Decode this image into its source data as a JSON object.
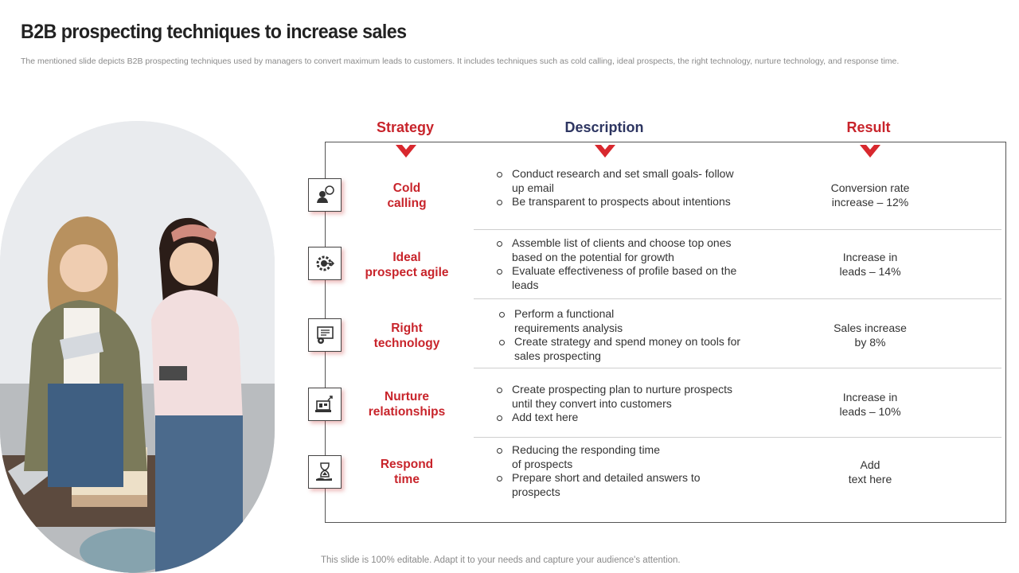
{
  "header": {
    "title": "B2B prospecting techniques to increase sales",
    "subtitle": "The mentioned slide depicts B2B prospecting techniques used by managers to convert maximum leads to customers. It includes techniques such as cold calling, ideal prospects, the right technology, nurture technology, and response time."
  },
  "columns": {
    "strategy": "Strategy",
    "description": "Description",
    "result": "Result"
  },
  "colors": {
    "accent_red": "#c8242b",
    "navy": "#2d3561"
  },
  "rows": [
    {
      "icon": "contact-person-icon",
      "strategy_line1": "Cold",
      "strategy_line2": "calling",
      "desc_items": [
        "Conduct research and set small goals- follow up email",
        "Be transparent to prospects about intentions"
      ],
      "result_line1": "Conversion rate",
      "result_line2": "increase – 12%"
    },
    {
      "icon": "target-gear-icon",
      "strategy_line1": "Ideal",
      "strategy_line2": "prospect agile",
      "desc_items": [
        "Assemble list of clients and choose top ones based on the potential for growth",
        "Evaluate effectiveness of profile based on the leads"
      ],
      "result_line1": "Increase in",
      "result_line2": "leads – 14%"
    },
    {
      "icon": "monitor-settings-icon",
      "strategy_line1": "Right",
      "strategy_line2": "technology",
      "desc_items": [
        "Perform a functional requirements analysis",
        "Create strategy and spend money on tools for sales prospecting"
      ],
      "result_line1": "Sales increase",
      "result_line2": "by 8%"
    },
    {
      "icon": "laptop-growth-icon",
      "strategy_line1": "Nurture",
      "strategy_line2": "relationships",
      "desc_items": [
        "Create prospecting plan to nurture prospects until they convert into customers",
        "Add text here"
      ],
      "result_line1": "Increase in",
      "result_line2": "leads – 10%"
    },
    {
      "icon": "hourglass-hand-icon",
      "strategy_line1": "Respond",
      "strategy_line2": "time",
      "desc_items": [
        "Reducing the responding time of prospects",
        "Prepare short and detailed answers to prospects"
      ],
      "result_line1": "Add",
      "result_line2": "text here"
    }
  ],
  "footer": "This slide is 100% editable. Adapt it to your needs and capture your audience's attention."
}
